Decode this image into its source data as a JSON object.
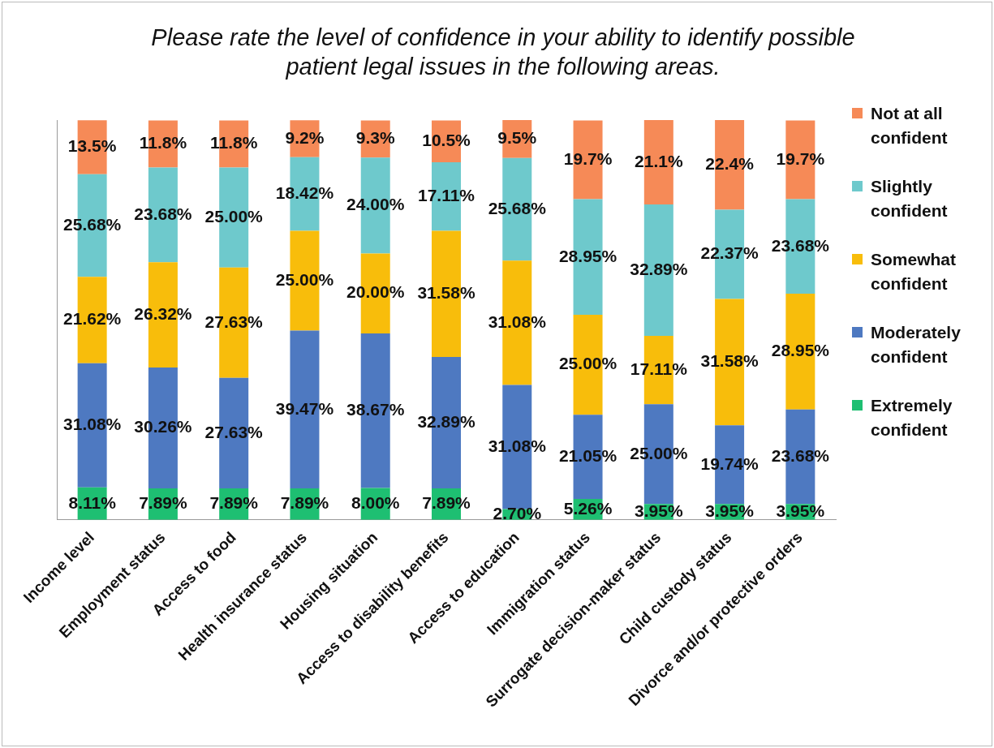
{
  "chart_data": {
    "type": "bar",
    "stacked": true,
    "title": "Please rate the level of confidence in your ability to identify possible patient legal issues in the following areas.",
    "categories": [
      "Income level",
      "Employment status",
      "Access to food",
      "Health insurance status",
      "Housing situation",
      "Access to disability benefits",
      "Access to education",
      "Immigration status",
      "Surrogate decision-maker status",
      "Child custody status",
      "Divorce and/or protective orders"
    ],
    "series": [
      {
        "name": "Extremely confident",
        "color": "#1ebf72",
        "values": [
          8.11,
          7.89,
          7.89,
          7.89,
          8.0,
          7.89,
          2.7,
          5.26,
          3.95,
          3.95,
          3.95
        ],
        "value_labels": [
          "8.11%",
          "7.89%",
          "7.89%",
          "7.89%",
          "8.00%",
          "7.89%",
          "2.70%",
          "5.26%",
          "3.95%",
          "3.95%",
          "3.95%"
        ]
      },
      {
        "name": "Moderately confident",
        "color": "#4e79c1",
        "values": [
          31.08,
          30.26,
          27.63,
          39.47,
          38.67,
          32.89,
          31.08,
          21.05,
          25.0,
          19.74,
          23.68
        ],
        "value_labels": [
          "31.08%",
          "30.26%",
          "27.63%",
          "39.47%",
          "38.67%",
          "32.89%",
          "31.08%",
          "21.05%",
          "25.00%",
          "19.74%",
          "23.68%"
        ]
      },
      {
        "name": "Somewhat confident",
        "color": "#f8bd0b",
        "values": [
          21.62,
          26.32,
          27.63,
          25.0,
          20.0,
          31.58,
          31.08,
          25.0,
          17.11,
          31.58,
          28.95
        ],
        "value_labels": [
          "21.62%",
          "26.32%",
          "27.63%",
          "25.00%",
          "20.00%",
          "31.58%",
          "31.08%",
          "25.00%",
          "17.11%",
          "31.58%",
          "28.95%"
        ]
      },
      {
        "name": "Slightly confident",
        "color": "#6ec9cc",
        "values": [
          25.68,
          23.68,
          25.0,
          18.42,
          24.0,
          17.11,
          25.68,
          28.95,
          32.89,
          22.37,
          23.68
        ],
        "value_labels": [
          "25.68%",
          "23.68%",
          "25.00%",
          "18.42%",
          "24.00%",
          "17.11%",
          "25.68%",
          "28.95%",
          "32.89%",
          "22.37%",
          "23.68%"
        ]
      },
      {
        "name": "Not at all confident",
        "color": "#f68a57",
        "values": [
          13.5,
          11.8,
          11.8,
          9.2,
          9.3,
          10.5,
          9.5,
          19.7,
          21.1,
          22.4,
          19.7
        ],
        "value_labels": [
          "13.5%",
          "11.8%",
          "11.8%",
          "9.2%",
          "9.3%",
          "10.5%",
          "9.5%",
          "19.7%",
          "21.1%",
          "22.4%",
          "19.7%"
        ]
      }
    ],
    "tick_labels": "x",
    "legend": "right"
  }
}
